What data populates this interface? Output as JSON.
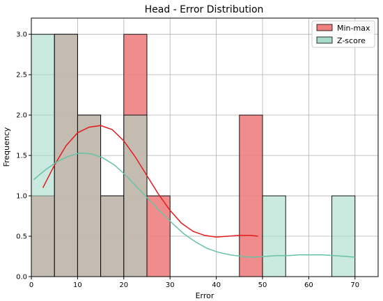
{
  "chart_data": {
    "type": "bar",
    "title": "Head - Error Distribution",
    "xlabel": "Error",
    "ylabel": "Frequency",
    "xlim": [
      0,
      75
    ],
    "ylim": [
      0,
      3.2
    ],
    "xticks": [
      0,
      10,
      20,
      30,
      40,
      50,
      60,
      70
    ],
    "yticks": [
      0.0,
      0.5,
      1.0,
      1.5,
      2.0,
      2.5,
      3.0
    ],
    "grid": true,
    "legend_position": "top-right",
    "bin_edges": [
      0,
      5,
      10,
      15,
      20,
      25,
      30,
      35,
      40,
      45,
      50,
      55,
      60,
      65,
      70
    ],
    "series": [
      {
        "name": "Min-max",
        "color": "#f08080",
        "line_color": "#e31a1c",
        "counts": [
          1,
          3,
          2,
          1,
          3,
          1,
          0,
          0,
          0,
          2,
          0,
          0,
          0,
          0
        ],
        "kde": {
          "x": [
            2.5,
            5,
            7.5,
            10,
            12.5,
            15,
            17.5,
            20,
            22.5,
            25,
            27.5,
            30,
            32.5,
            35,
            37.5,
            40,
            42.5,
            45,
            47.5,
            49
          ],
          "y": [
            1.1,
            1.38,
            1.62,
            1.78,
            1.85,
            1.87,
            1.82,
            1.68,
            1.48,
            1.25,
            1.02,
            0.82,
            0.66,
            0.56,
            0.51,
            0.49,
            0.5,
            0.51,
            0.51,
            0.5
          ]
        }
      },
      {
        "name": "Z-score",
        "color": "#a8dcc9",
        "line_color": "#66c2a5",
        "counts": [
          3,
          3,
          2,
          1,
          2,
          0,
          0,
          0,
          0,
          0,
          1,
          0,
          0,
          1
        ],
        "kde": {
          "x": [
            0.5,
            3,
            5.5,
            8,
            10.5,
            13,
            15.5,
            18,
            20.5,
            23,
            25.5,
            28,
            30.5,
            33,
            35.5,
            38,
            40.5,
            43,
            45.5,
            48,
            50.5,
            53,
            55.5,
            58,
            60.5,
            63,
            65.5,
            68,
            70
          ],
          "y": [
            1.2,
            1.32,
            1.42,
            1.49,
            1.53,
            1.52,
            1.47,
            1.38,
            1.25,
            1.1,
            0.95,
            0.8,
            0.66,
            0.53,
            0.43,
            0.35,
            0.3,
            0.27,
            0.25,
            0.24,
            0.25,
            0.26,
            0.26,
            0.27,
            0.27,
            0.27,
            0.26,
            0.25,
            0.24
          ]
        }
      }
    ]
  }
}
